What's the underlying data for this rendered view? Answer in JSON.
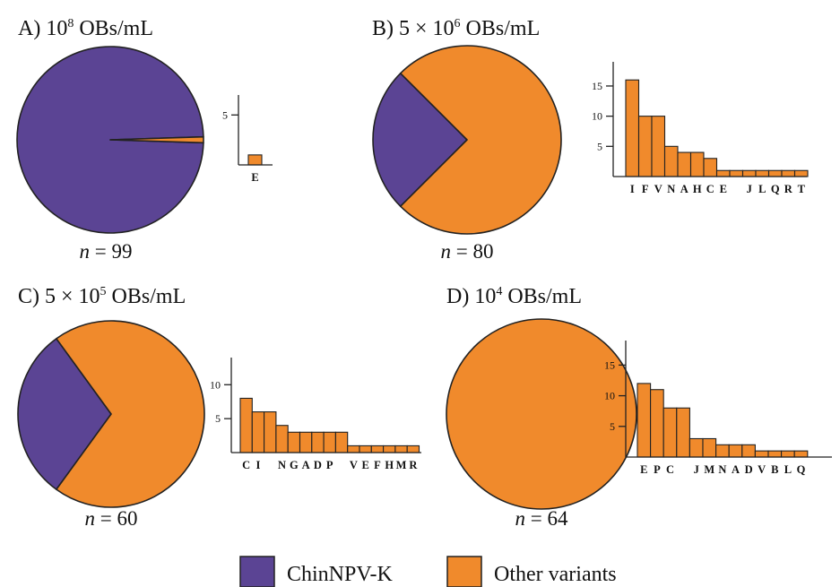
{
  "colors": {
    "chinnpv_k": "#5b4494",
    "other": "#f08a2c",
    "stroke": "#222222"
  },
  "legend": {
    "item1": "ChinNPV-K",
    "item2": "Other variants"
  },
  "chart_data": [
    {
      "panel": "A",
      "type": "pie",
      "title": {
        "prefix": "A) 10",
        "exponent": "8",
        "suffix": " OBs/mL"
      },
      "n_label": {
        "italic": "n",
        "rest": " = 99"
      },
      "slices": [
        {
          "name": "ChinNPV-K",
          "value": 98
        },
        {
          "name": "Other variants",
          "value": 1
        }
      ],
      "bar": {
        "type": "bar",
        "categories": [
          "E"
        ],
        "values": [
          1
        ],
        "yticks": [
          5
        ],
        "ylim": [
          0,
          7
        ]
      }
    },
    {
      "panel": "B",
      "type": "pie",
      "title": {
        "prefix": "B) 5 × 10",
        "exponent": "6",
        "suffix": " OBs/mL"
      },
      "n_label": {
        "italic": "n",
        "rest": " = 80"
      },
      "slices": [
        {
          "name": "ChinNPV-K",
          "value": 20
        },
        {
          "name": "Other variants",
          "value": 60
        }
      ],
      "bar": {
        "type": "bar",
        "categories": [
          "I",
          "F",
          "V",
          "N",
          "A",
          "H",
          "C",
          "E",
          "",
          "J",
          "L",
          "Q",
          "R",
          "T"
        ],
        "values": [
          16,
          10,
          10,
          5,
          4,
          4,
          3,
          1,
          1,
          1,
          1,
          1,
          1,
          1
        ],
        "yticks": [
          5,
          10,
          15
        ],
        "ylim": [
          0,
          19
        ]
      }
    },
    {
      "panel": "C",
      "type": "pie",
      "title": {
        "prefix": "C) 5 × 10",
        "exponent": "5",
        "suffix": " OBs/mL"
      },
      "n_label": {
        "italic": "n",
        "rest": " = 60"
      },
      "slices": [
        {
          "name": "ChinNPV-K",
          "value": 18
        },
        {
          "name": "Other variants",
          "value": 42
        }
      ],
      "bar": {
        "type": "bar",
        "categories": [
          "C",
          "I",
          "",
          "N",
          "G",
          "A",
          "D",
          "P",
          "",
          "V",
          "E",
          "F",
          "H",
          "M",
          "R"
        ],
        "values": [
          8,
          6,
          6,
          4,
          3,
          3,
          3,
          3,
          3,
          1,
          1,
          1,
          1,
          1,
          1
        ],
        "yticks": [
          5,
          10
        ],
        "ylim": [
          0,
          14
        ]
      }
    },
    {
      "panel": "D",
      "type": "pie",
      "title": {
        "prefix": "D) 10",
        "exponent": "4",
        "suffix": " OBs/mL"
      },
      "n_label": {
        "italic": "n",
        "rest": " = 64"
      },
      "slices": [
        {
          "name": "Other variants",
          "value": 64
        }
      ],
      "bar": {
        "type": "bar",
        "categories": [
          "E",
          "P",
          "C",
          "",
          "J",
          "M",
          "N",
          "A",
          "D",
          "V",
          "B",
          "L",
          "Q"
        ],
        "values": [
          12,
          11,
          8,
          8,
          3,
          3,
          2,
          2,
          2,
          1,
          1,
          1,
          1
        ],
        "yticks": [
          5,
          10,
          15
        ],
        "ylim": [
          0,
          19
        ]
      }
    }
  ]
}
